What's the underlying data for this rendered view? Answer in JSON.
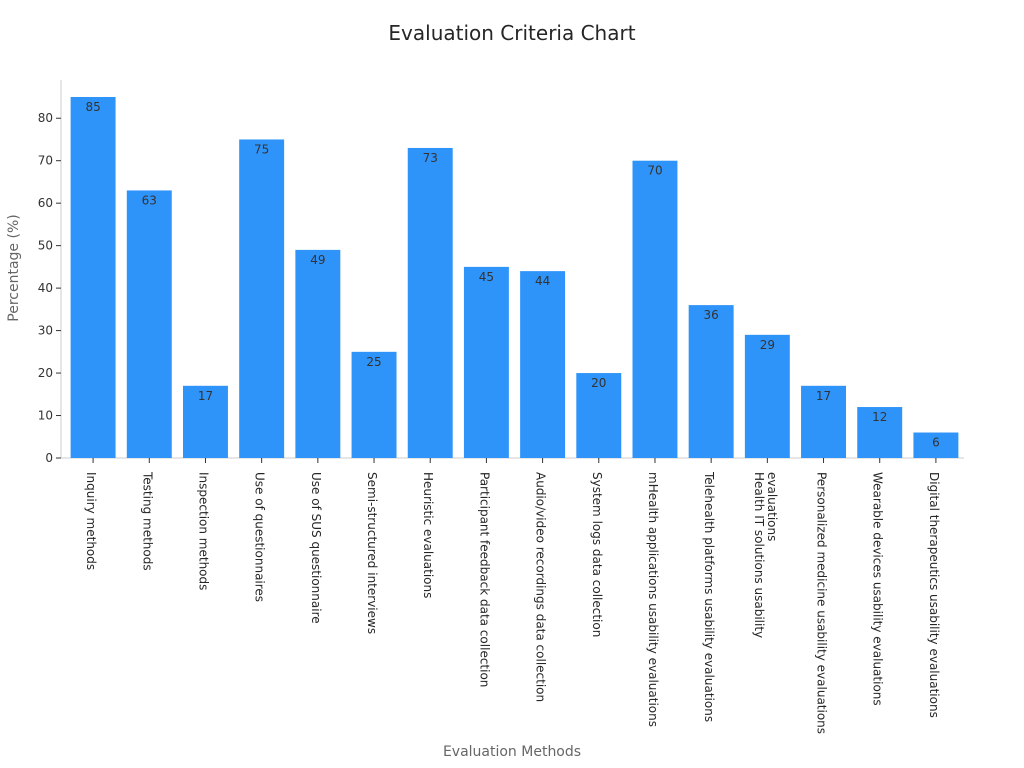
{
  "chart_data": {
    "type": "bar",
    "title": "Evaluation Criteria Chart",
    "xlabel": "Evaluation Methods",
    "ylabel": "Percentage (%)",
    "ylim": [
      0,
      89
    ],
    "yticks": [
      0,
      10,
      20,
      30,
      40,
      50,
      60,
      70,
      80
    ],
    "grid": false,
    "color": "#2f94f9",
    "categories": [
      [
        "Inquiry methods"
      ],
      [
        "Testing methods"
      ],
      [
        "Inspection methods"
      ],
      [
        "Use of questionnaires"
      ],
      [
        "Use of SUS questionnaire"
      ],
      [
        "Semi-structured interviews"
      ],
      [
        "Heuristic evaluations"
      ],
      [
        "Participant feedback data collection"
      ],
      [
        "Audio/video recordings data collection"
      ],
      [
        "System logs data collection"
      ],
      [
        "mHealth applications usability evaluations"
      ],
      [
        "Telehealth platforms usability evaluations"
      ],
      [
        "Health IT solutions usability",
        "evaluations"
      ],
      [
        "Personalized medicine usability evaluations"
      ],
      [
        "Wearable devices usability evaluations"
      ],
      [
        "Digital therapeutics usability evaluations"
      ]
    ],
    "values": [
      85,
      63,
      17,
      75,
      49,
      25,
      73,
      45,
      44,
      20,
      70,
      36,
      29,
      17,
      12,
      6
    ]
  }
}
